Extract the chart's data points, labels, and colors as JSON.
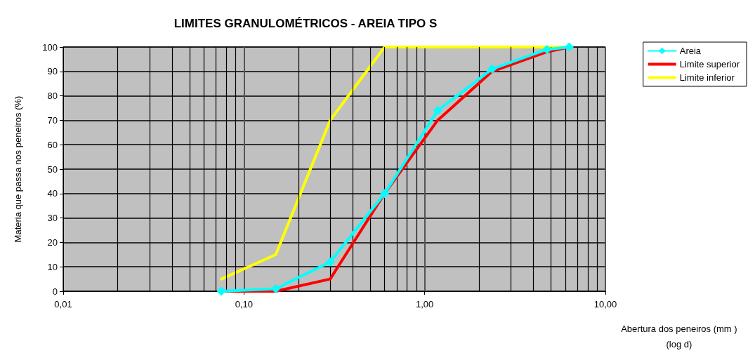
{
  "chart_data": {
    "type": "line",
    "title": "LIMITES GRANULOMÉTRICOS - AREIA TIPO S",
    "xlabel": "Abertura dos peneiros (mm )\n(log d)",
    "ylabel": "Materia que passa nos peneiros (%)",
    "log": "x",
    "xlim": [
      0.01,
      10
    ],
    "xticks": [
      {
        "value": 0.01,
        "label": "0,01"
      },
      {
        "value": 0.1,
        "label": "0,10"
      },
      {
        "value": 1,
        "label": "1,00"
      },
      {
        "value": 10,
        "label": "10,00"
      }
    ],
    "ylim": [
      0,
      100
    ],
    "yticks": [
      0,
      10,
      20,
      30,
      40,
      50,
      60,
      70,
      80,
      90,
      100
    ],
    "grid": true,
    "legend": "right",
    "series": [
      {
        "name": "Areia",
        "color": "#00ffff",
        "marker": "diamond",
        "x": [
          0.075,
          0.15,
          0.3,
          0.6,
          1.18,
          2.36,
          4.75,
          6.3
        ],
        "values": [
          0,
          1,
          12,
          40,
          74,
          91,
          99,
          100
        ]
      },
      {
        "name": "Limite superior",
        "color": "#ff0000",
        "marker": "none",
        "x": [
          0.075,
          0.15,
          0.3,
          0.6,
          1.18,
          2.36,
          4.75,
          6.3
        ],
        "values": [
          0,
          0,
          5,
          40,
          70,
          90,
          98,
          100
        ]
      },
      {
        "name": "Limite inferior",
        "color": "#ffff00",
        "marker": "none",
        "x": [
          0.075,
          0.15,
          0.3,
          0.6,
          6.3
        ],
        "values": [
          5,
          15,
          70,
          100,
          100
        ]
      }
    ]
  }
}
